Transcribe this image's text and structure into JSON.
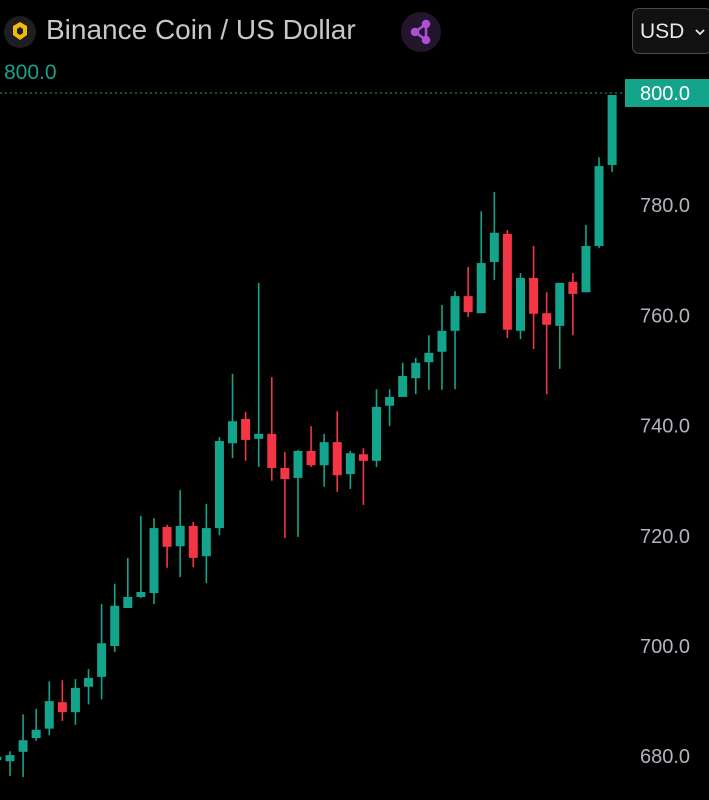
{
  "header": {
    "title": "Binance Coin / US Dollar",
    "logo_icon": "bnb-coin-icon",
    "share_icon": "share-icon",
    "currency": "USD",
    "last_price": "800.0"
  },
  "colors": {
    "up": "#14a38b",
    "down": "#f23645",
    "axis_text": "#b2b5be",
    "badge": "#14a38b",
    "title": "#c8c8cc",
    "logo": "#f0b90b",
    "share": "#b04fd6"
  },
  "chart_data": {
    "type": "candlestick",
    "ylim": [
      676,
      803
    ],
    "y_ticks": [
      "680.0",
      "700.0",
      "720.0",
      "740.0",
      "760.0",
      "780.0",
      "800.0"
    ],
    "y_tick_values": [
      680,
      700,
      720,
      740,
      760,
      780,
      800
    ],
    "current_price": 800.0,
    "current_price_label": "800.0",
    "grid": false,
    "candles": [
      {
        "o": 679.3,
        "h": 680.0,
        "l": 679.0,
        "c": 679.9
      },
      {
        "o": 679.1,
        "h": 680.9,
        "l": 676.4,
        "c": 680.2
      },
      {
        "o": 680.8,
        "h": 687.6,
        "l": 676.2,
        "c": 682.9
      },
      {
        "o": 683.3,
        "h": 688.6,
        "l": 682.8,
        "c": 684.8
      },
      {
        "o": 685.0,
        "h": 693.6,
        "l": 683.8,
        "c": 690.0
      },
      {
        "o": 689.8,
        "h": 693.8,
        "l": 686.4,
        "c": 688.0
      },
      {
        "o": 688.0,
        "h": 694.0,
        "l": 685.7,
        "c": 692.4
      },
      {
        "o": 692.6,
        "h": 695.8,
        "l": 689.4,
        "c": 694.2
      },
      {
        "o": 694.4,
        "h": 707.6,
        "l": 690.3,
        "c": 700.5
      },
      {
        "o": 700.0,
        "h": 711.3,
        "l": 698.9,
        "c": 707.3
      },
      {
        "o": 706.9,
        "h": 716.0,
        "l": 706.9,
        "c": 708.9
      },
      {
        "o": 708.9,
        "h": 723.6,
        "l": 708.7,
        "c": 709.8
      },
      {
        "o": 709.6,
        "h": 723.2,
        "l": 707.6,
        "c": 721.4
      },
      {
        "o": 721.6,
        "h": 722.0,
        "l": 714.2,
        "c": 718.0
      },
      {
        "o": 718.1,
        "h": 728.3,
        "l": 712.5,
        "c": 721.8
      },
      {
        "o": 721.8,
        "h": 722.5,
        "l": 714.3,
        "c": 716.0
      },
      {
        "o": 716.3,
        "h": 725.8,
        "l": 711.4,
        "c": 721.4
      },
      {
        "o": 721.4,
        "h": 737.9,
        "l": 720.1,
        "c": 737.2
      },
      {
        "o": 736.8,
        "h": 749.4,
        "l": 734.1,
        "c": 740.8
      },
      {
        "o": 741.2,
        "h": 742.5,
        "l": 733.6,
        "c": 737.4
      },
      {
        "o": 737.6,
        "h": 765.9,
        "l": 732.5,
        "c": 738.5
      },
      {
        "o": 738.5,
        "h": 748.8,
        "l": 730.0,
        "c": 732.3
      },
      {
        "o": 732.3,
        "h": 735.2,
        "l": 719.6,
        "c": 730.3
      },
      {
        "o": 730.5,
        "h": 735.6,
        "l": 719.8,
        "c": 735.4
      },
      {
        "o": 735.4,
        "h": 739.9,
        "l": 732.5,
        "c": 732.8
      },
      {
        "o": 732.8,
        "h": 738.5,
        "l": 728.9,
        "c": 737.0
      },
      {
        "o": 737.0,
        "h": 742.6,
        "l": 728.0,
        "c": 731.0
      },
      {
        "o": 731.2,
        "h": 735.4,
        "l": 728.5,
        "c": 735.0
      },
      {
        "o": 734.8,
        "h": 735.9,
        "l": 725.6,
        "c": 733.6
      },
      {
        "o": 733.6,
        "h": 746.6,
        "l": 732.5,
        "c": 743.4
      },
      {
        "o": 743.6,
        "h": 746.6,
        "l": 739.9,
        "c": 745.2
      },
      {
        "o": 745.2,
        "h": 751.4,
        "l": 745.9,
        "c": 749.0
      },
      {
        "o": 748.6,
        "h": 752.3,
        "l": 745.7,
        "c": 751.4
      },
      {
        "o": 751.5,
        "h": 756.4,
        "l": 746.5,
        "c": 753.2
      },
      {
        "o": 753.4,
        "h": 761.9,
        "l": 746.5,
        "c": 757.2
      },
      {
        "o": 757.2,
        "h": 764.4,
        "l": 746.6,
        "c": 763.5
      },
      {
        "o": 763.5,
        "h": 768.8,
        "l": 759.7,
        "c": 760.6
      },
      {
        "o": 760.4,
        "h": 778.9,
        "l": 760.4,
        "c": 769.5
      },
      {
        "o": 769.7,
        "h": 782.4,
        "l": 766.4,
        "c": 775.0
      },
      {
        "o": 774.8,
        "h": 775.5,
        "l": 755.9,
        "c": 757.4
      },
      {
        "o": 757.2,
        "h": 767.7,
        "l": 755.7,
        "c": 766.8
      },
      {
        "o": 766.8,
        "h": 772.6,
        "l": 753.9,
        "c": 760.3
      },
      {
        "o": 760.4,
        "h": 764.2,
        "l": 745.7,
        "c": 758.3
      },
      {
        "o": 758.1,
        "h": 765.9,
        "l": 750.3,
        "c": 765.9
      },
      {
        "o": 766.1,
        "h": 767.7,
        "l": 756.4,
        "c": 763.9
      },
      {
        "o": 764.2,
        "h": 776.4,
        "l": 764.2,
        "c": 772.6
      },
      {
        "o": 772.6,
        "h": 788.7,
        "l": 772.2,
        "c": 787.1
      },
      {
        "o": 787.3,
        "h": 800.0,
        "l": 786.0,
        "c": 800.0
      }
    ]
  }
}
